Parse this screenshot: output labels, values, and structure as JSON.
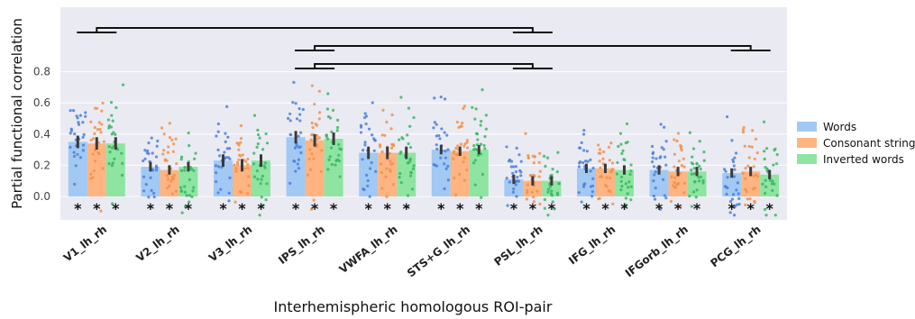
{
  "chart_data": {
    "type": "bar",
    "ylabel": "Partial functional correlation",
    "xlabel": "Interhemispheric homologous ROI-pair",
    "ylim": [
      -0.15,
      1.22
    ],
    "yticks": [
      "0.0",
      "0.2",
      "0.4",
      "0.6",
      "0.8"
    ],
    "ytick_values": [
      0.0,
      0.2,
      0.4,
      0.6,
      0.8
    ],
    "grid": true,
    "legend_position": "right",
    "categories": [
      "V1_lh_rh",
      "V2_lh_rh",
      "V3_lh_rh",
      "IPS_lh_rh",
      "VWFA_lh_rh",
      "STS+G_lh_rh",
      "PSL_lh_rh",
      "IFG_lh_rh",
      "IFGorb_lh_rh",
      "PCG_lh_rh"
    ],
    "series": [
      {
        "name": "Words",
        "color": "#a1c9f4",
        "dot_color": "#4a7fdc",
        "values": [
          0.35,
          0.19,
          0.23,
          0.38,
          0.28,
          0.3,
          0.11,
          0.18,
          0.17,
          0.15
        ],
        "ci": [
          0.04,
          0.03,
          0.04,
          0.04,
          0.04,
          0.03,
          0.03,
          0.03,
          0.03,
          0.03
        ]
      },
      {
        "name": "Consonant strings",
        "color": "#ffb482",
        "dot_color": "#f2914a",
        "values": [
          0.34,
          0.17,
          0.2,
          0.36,
          0.28,
          0.29,
          0.1,
          0.18,
          0.16,
          0.16
        ],
        "ci": [
          0.04,
          0.03,
          0.04,
          0.04,
          0.04,
          0.03,
          0.03,
          0.03,
          0.03,
          0.03
        ]
      },
      {
        "name": "Inverted words",
        "color": "#8de5a1",
        "dot_color": "#39b661",
        "values": [
          0.34,
          0.19,
          0.23,
          0.37,
          0.28,
          0.3,
          0.1,
          0.17,
          0.16,
          0.14
        ],
        "ci": [
          0.04,
          0.03,
          0.04,
          0.04,
          0.04,
          0.03,
          0.03,
          0.03,
          0.03,
          0.03
        ]
      }
    ],
    "significance_marker": "*",
    "comparison_lines": [
      {
        "from": "V1_lh_rh",
        "to": "PSL_lh_rh",
        "level": 3
      },
      {
        "from": "IPS_lh_rh",
        "to": "PCG_lh_rh",
        "level": 2
      },
      {
        "from": "IPS_lh_rh",
        "to": "PSL_lh_rh",
        "level": 1
      }
    ]
  }
}
